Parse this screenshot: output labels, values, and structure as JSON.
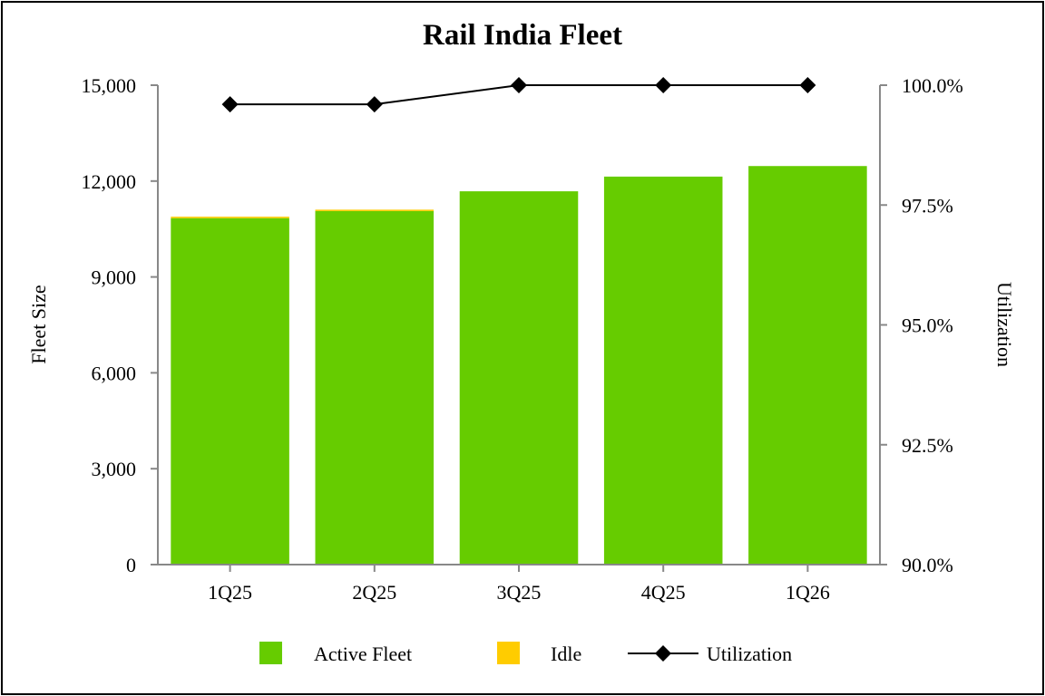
{
  "chart_data": {
    "type": "bar",
    "title": "Rail India Fleet",
    "categories": [
      "1Q25",
      "2Q25",
      "3Q25",
      "4Q25",
      "1Q26"
    ],
    "series": [
      {
        "name": "Active Fleet",
        "type": "bar",
        "stacked": true,
        "axis": "left",
        "color": "#66cc00",
        "values": [
          10840,
          11060,
          11680,
          12140,
          12470
        ]
      },
      {
        "name": "Idle",
        "type": "bar",
        "stacked": true,
        "axis": "left",
        "color": "#ffcc00",
        "values": [
          45,
          45,
          0,
          0,
          0
        ]
      },
      {
        "name": "Utilization",
        "type": "line",
        "axis": "right",
        "color": "#000000",
        "marker": "diamond",
        "values": [
          99.6,
          99.6,
          100.0,
          100.0,
          100.0
        ]
      }
    ],
    "ylabel": "Fleet Size",
    "y2label": "Utilization",
    "ylim": [
      0,
      15000
    ],
    "y2lim": [
      90,
      100
    ],
    "yticks": [
      "0",
      "3,000",
      "6,000",
      "9,000",
      "12,000",
      "15,000"
    ],
    "y2ticks": [
      "90.0%",
      "92.5%",
      "95.0%",
      "97.5%",
      "100.0%"
    ],
    "legend_position": "bottom",
    "grid": false
  }
}
